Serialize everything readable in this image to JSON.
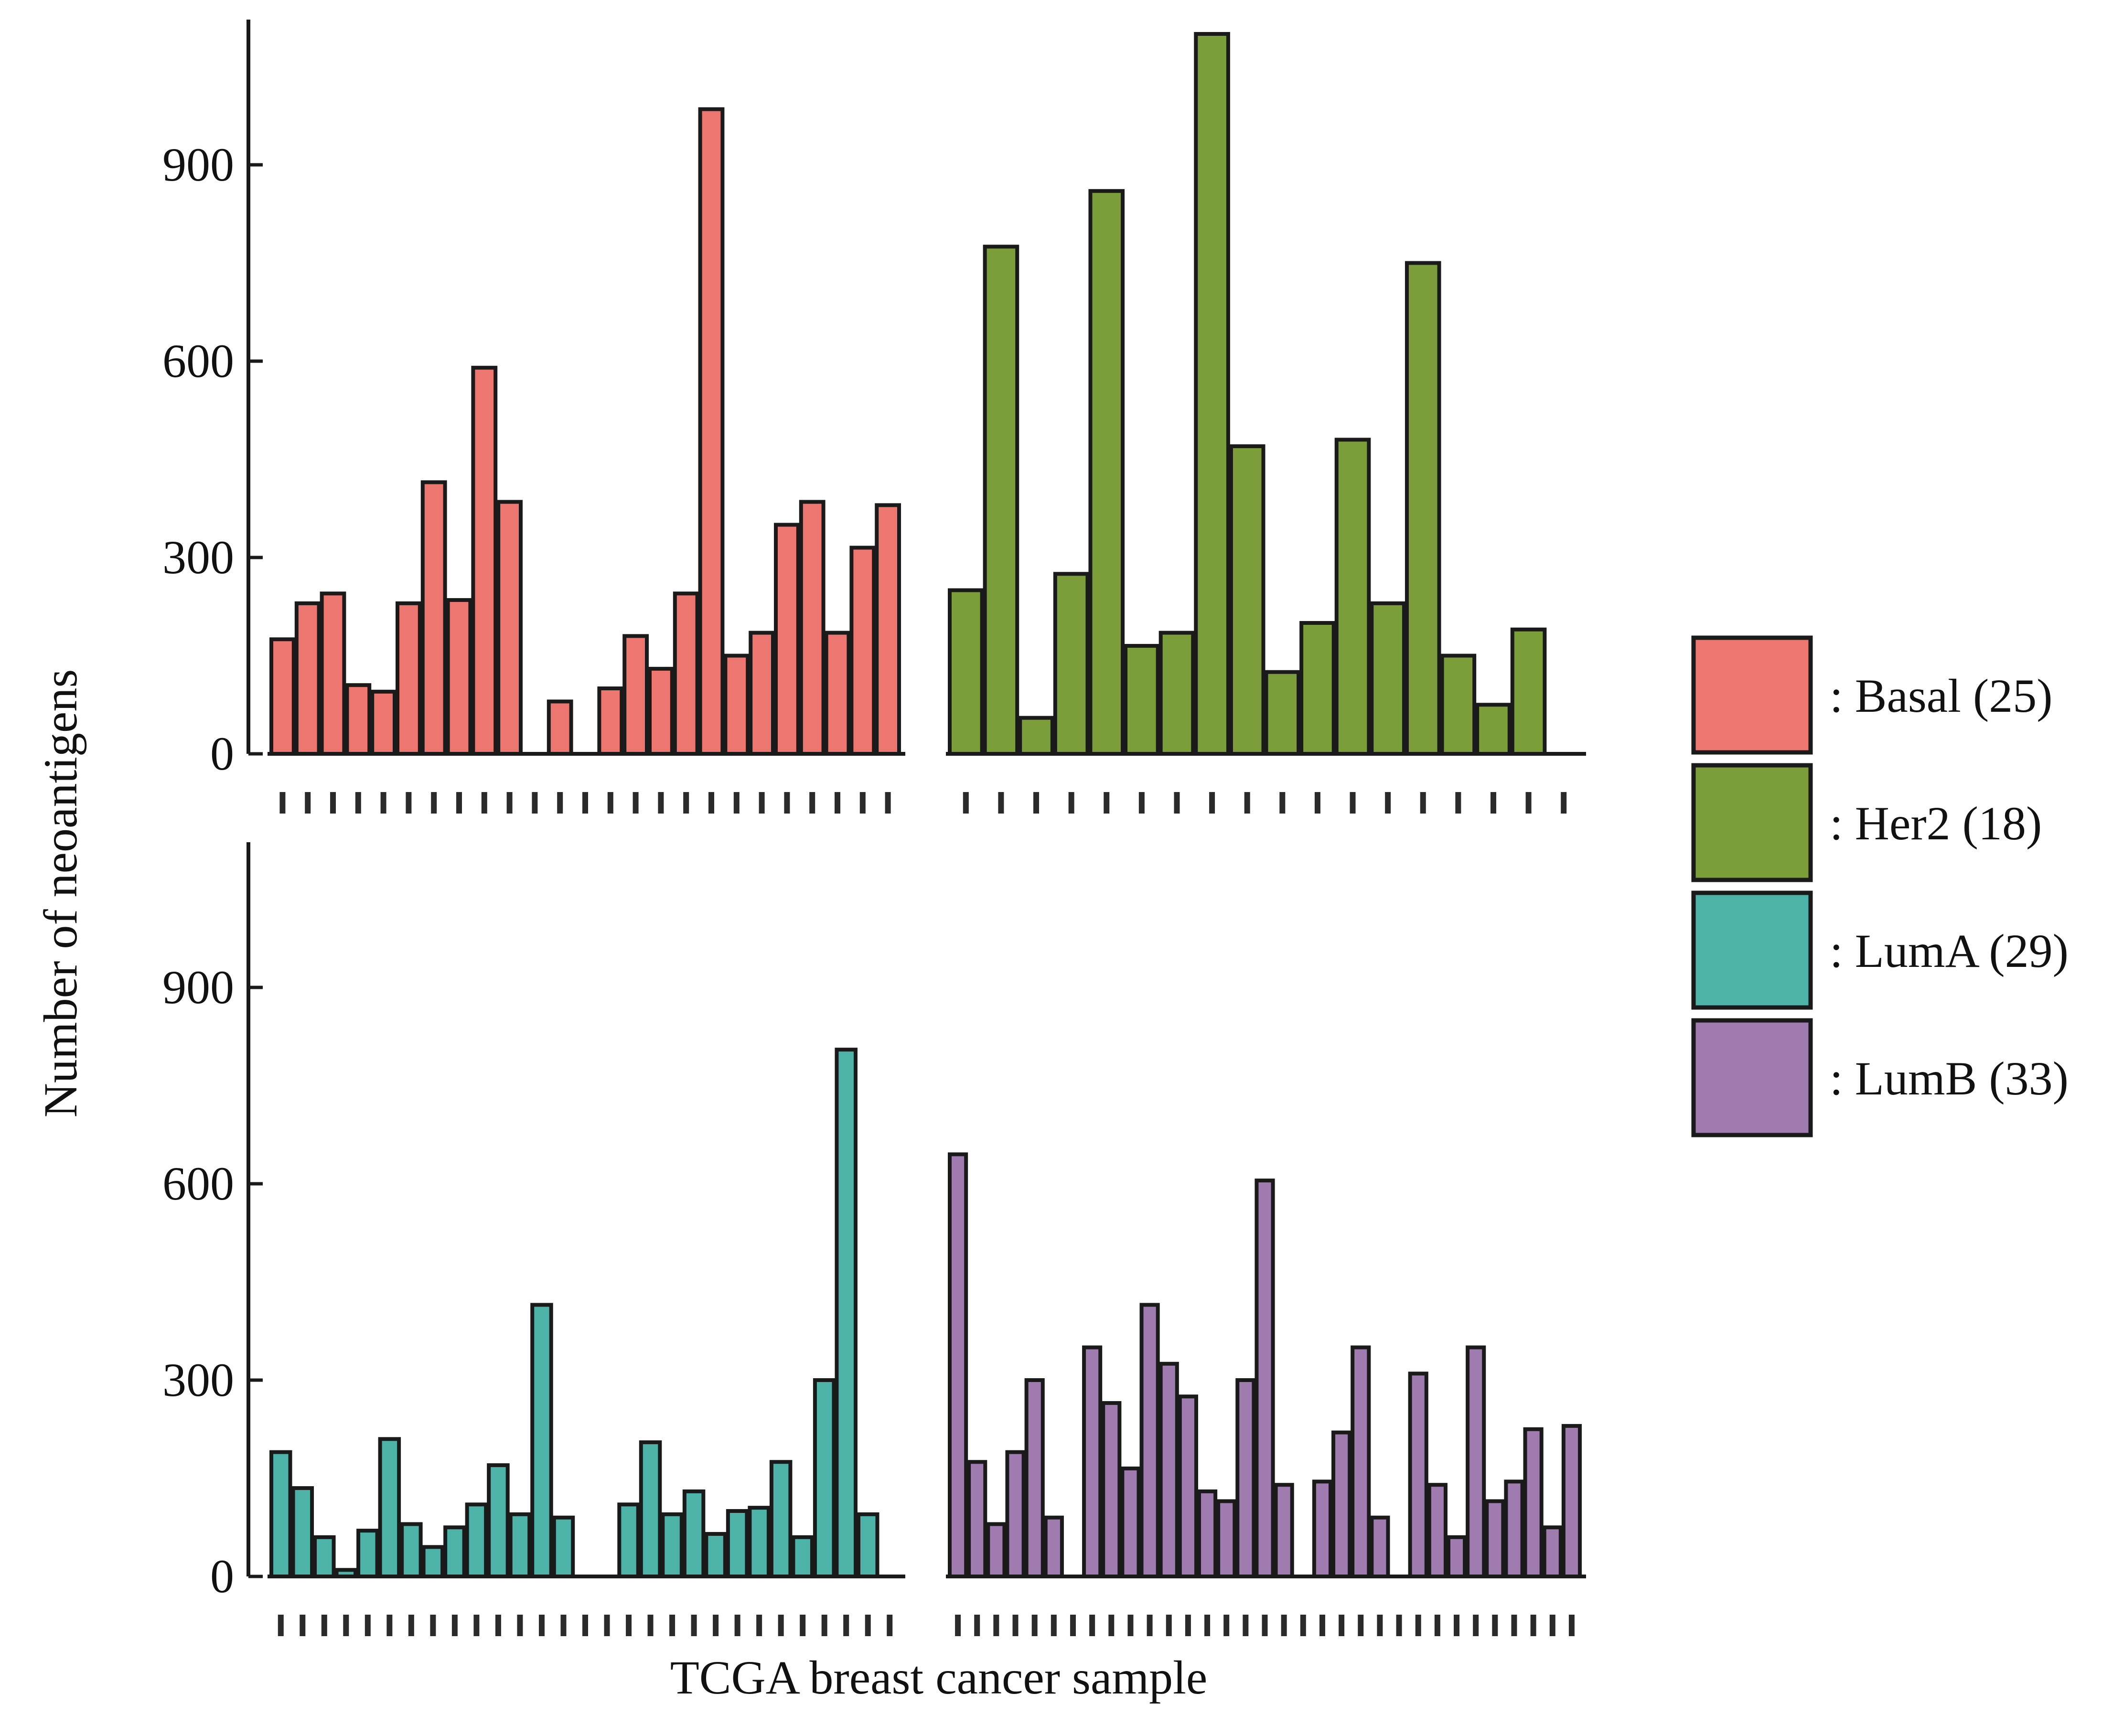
{
  "figure": {
    "xlabel": "TCGA breast cancer sample",
    "ylabel": "Number of neoantigens"
  },
  "legend": [
    {
      "label": ": Basal (25)",
      "color": "#ED7670"
    },
    {
      "label": ": Her2 (18)",
      "color": "#7B9E3A"
    },
    {
      "label": ": LumA (29)",
      "color": "#4DB2A8"
    },
    {
      "label": ": LumB (33)",
      "color": "#A07BB0"
    }
  ],
  "chart_data": [
    {
      "type": "bar",
      "panel": "top",
      "ylim": [
        0,
        1100
      ],
      "yticks": [
        0,
        300,
        600,
        900
      ],
      "legend_position": "right",
      "groups": [
        {
          "name": "Basal (25)",
          "color": "#ED7670",
          "values": [
            175,
            230,
            245,
            105,
            95,
            230,
            415,
            235,
            590,
            385,
            0,
            80,
            0,
            100,
            180,
            130,
            245,
            985,
            150,
            185,
            350,
            385,
            185,
            315,
            380
          ]
        },
        {
          "name": "Her2 (18)",
          "color": "#7B9E3A",
          "values": [
            250,
            775,
            55,
            275,
            860,
            165,
            185,
            1100,
            470,
            125,
            200,
            480,
            230,
            750,
            150,
            75,
            190,
            0
          ]
        }
      ]
    },
    {
      "type": "bar",
      "panel": "bottom",
      "ylim": [
        0,
        1100
      ],
      "yticks": [
        0,
        300,
        600,
        900
      ],
      "legend_position": "right",
      "groups": [
        {
          "name": "LumA (29)",
          "color": "#4DB2A8",
          "values": [
            190,
            135,
            60,
            10,
            70,
            210,
            80,
            45,
            75,
            110,
            170,
            95,
            415,
            90,
            0,
            0,
            110,
            205,
            95,
            130,
            65,
            100,
            105,
            175,
            60,
            300,
            805,
            95,
            0
          ]
        },
        {
          "name": "LumB (33)",
          "color": "#A07BB0",
          "values": [
            645,
            175,
            80,
            190,
            300,
            90,
            0,
            350,
            265,
            165,
            415,
            325,
            275,
            130,
            115,
            300,
            605,
            140,
            0,
            145,
            220,
            350,
            90,
            0,
            310,
            140,
            60,
            350,
            115,
            145,
            225,
            75,
            230
          ]
        }
      ]
    }
  ]
}
